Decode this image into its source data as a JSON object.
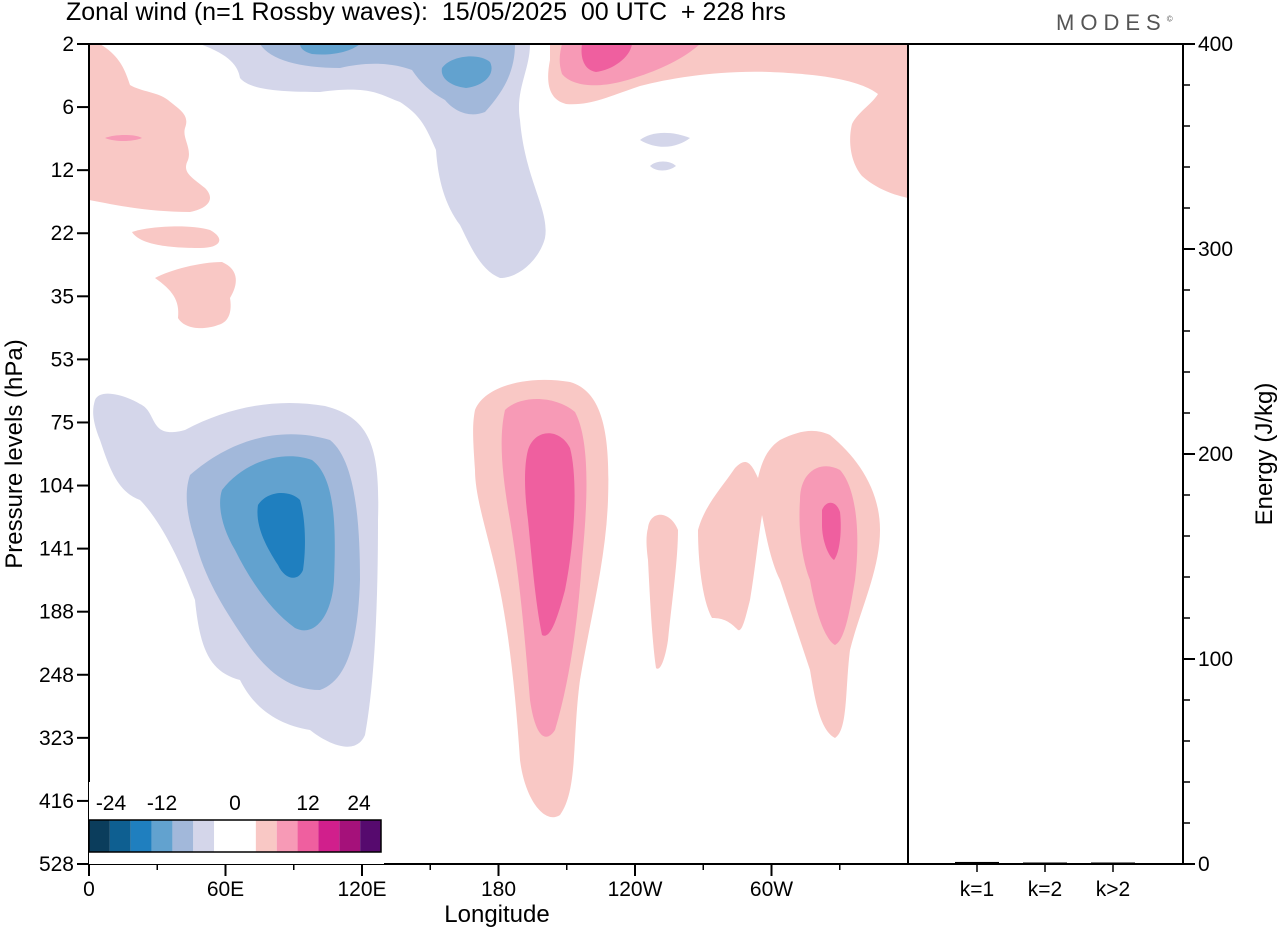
{
  "title": "Zonal wind (n=1 Rossby waves):  15/05/2025  00 UTC  + 228 hrs",
  "brand": "MODES",
  "brand_mark": "©",
  "colors": {
    "negative": [
      "#0b3d5c",
      "#0e5f91",
      "#1f7fbf",
      "#62a2cf",
      "#a2b8da",
      "#d4d6ea"
    ],
    "zero": "#ffffff",
    "positive": [
      "#f9c8c5",
      "#f79ab6",
      "#ef5f9f",
      "#d11f8c",
      "#a5117a",
      "#560a6e"
    ]
  },
  "chart_data": [
    {
      "type": "heatmap",
      "title": "",
      "xlabel": "Longitude",
      "ylabel": "Pressure levels (hPa)",
      "x_ticks": [
        "0",
        "60E",
        "120E",
        "180",
        "120W",
        "60W"
      ],
      "y_ticks": [
        "2",
        "6",
        "12",
        "22",
        "35",
        "53",
        "75",
        "104",
        "141",
        "188",
        "248",
        "323",
        "416",
        "528"
      ],
      "colorbar": {
        "labels": [
          "-24",
          "-12",
          "0",
          "12",
          "24"
        ],
        "levels": [
          -24,
          -20,
          -16,
          -12,
          -8,
          -4,
          4,
          8,
          12,
          16,
          20,
          24
        ]
      },
      "features": [
        {
          "name": "negative-center-lower",
          "lon": 85,
          "pressure": 130,
          "min_value": -16
        },
        {
          "name": "negative-center-upper-1",
          "lon": 150,
          "pressure": 2,
          "min_value": -12
        },
        {
          "name": "negative-center-upper-2",
          "lon": 165,
          "pressure": 4,
          "min_value": -12
        },
        {
          "name": "positive-center-lower-1",
          "lon": 200,
          "pressure": 130,
          "max_value": 12
        },
        {
          "name": "positive-center-lower-2",
          "lon": 295,
          "pressure": 130,
          "max_value": 12
        },
        {
          "name": "positive-center-upper",
          "lon": 225,
          "pressure": 2,
          "max_value": 12
        }
      ]
    },
    {
      "type": "bar",
      "categories": [
        "k=1",
        "k=2",
        "k>2"
      ],
      "values": [
        1,
        0.3,
        0.5
      ],
      "ylabel": "Energy (J/kg)",
      "ylim": [
        0,
        400
      ],
      "y_ticks": [
        "0",
        "100",
        "200",
        "300",
        "400"
      ]
    }
  ]
}
